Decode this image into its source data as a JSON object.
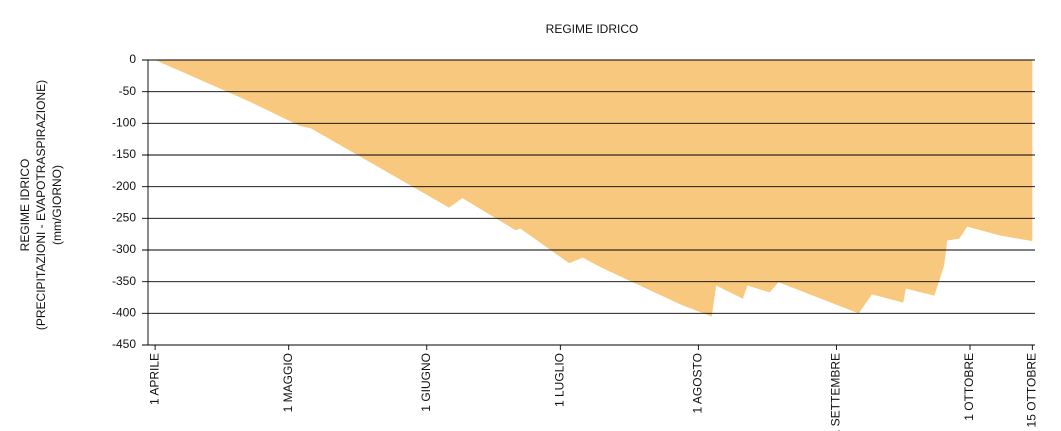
{
  "chart_data": {
    "type": "area",
    "title": "REGIME IDRICO",
    "ylabel": [
      "REGIME IDRICO",
      "(PRECIPITAZIONI - EVAPOTRASPIRAZIONE)",
      "(mm/GIORNO)"
    ],
    "color": "#f9c87f",
    "grid": true,
    "x": [
      0,
      21.3,
      32.5,
      35,
      66,
      69,
      81,
      82,
      93,
      96,
      100,
      118,
      125,
      126,
      132,
      133,
      138,
      140,
      158,
      161,
      168,
      168.6,
      175,
      177.2,
      177.9,
      180.6,
      182.4,
      189.6,
      197
    ],
    "values": [
      0,
      -66,
      -104,
      -108,
      -233,
      -218,
      -269,
      -266,
      -321,
      -312,
      -327,
      -386,
      -405,
      -356,
      -377,
      -356,
      -367,
      -351,
      -400,
      -370,
      -383,
      -361,
      -372,
      -324,
      -285,
      -282,
      -263,
      -277,
      -286
    ],
    "xlim": [
      -1.6,
      197.6
    ],
    "xticks": [
      {
        "value": 0,
        "label": "1 APRILE"
      },
      {
        "value": 30,
        "label": "1 MAGGIO"
      },
      {
        "value": 61,
        "label": "1 GIUGNO"
      },
      {
        "value": 91,
        "label": "1 LUGLIO"
      },
      {
        "value": 122,
        "label": "1 AGOSTO"
      },
      {
        "value": 153,
        "label": "1 SETTEMBRE"
      },
      {
        "value": 183,
        "label": "1 OTTOBRE"
      },
      {
        "value": 197,
        "label": "15 OTTOBRE"
      }
    ],
    "ylim": [
      -450,
      0
    ],
    "yticks": [
      0,
      -50,
      -100,
      -150,
      -200,
      -250,
      -300,
      -350,
      -400,
      -450
    ]
  }
}
